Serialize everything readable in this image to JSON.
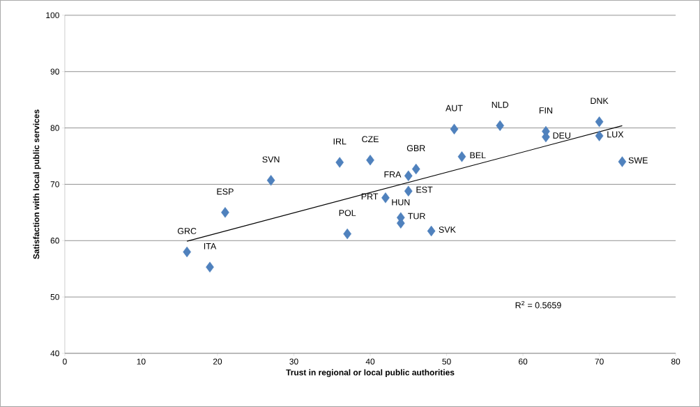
{
  "chart_data": {
    "type": "scatter",
    "xlabel": "Trust in regional or local public authorities",
    "ylabel": "Satisfaction with local public services",
    "series": [
      {
        "type": "scatter",
        "color": "#4f81bd",
        "marker": "diamond",
        "x": [
          16,
          19,
          21,
          27,
          36,
          40,
          46,
          45,
          45,
          42,
          44,
          44,
          37,
          48,
          51,
          52,
          57,
          63,
          63,
          70,
          70,
          73
        ],
        "values": [
          58.0,
          55.3,
          65.0,
          70.7,
          73.9,
          74.3,
          72.7,
          71.5,
          68.8,
          67.6,
          64.1,
          63.1,
          61.2,
          61.7,
          79.8,
          74.9,
          80.4,
          79.4,
          78.4,
          81.1,
          78.6,
          74.0
        ]
      },
      {
        "type": "line",
        "color": "#000000",
        "x": [
          16,
          73
        ],
        "values": [
          59.9,
          80.4
        ]
      }
    ],
    "xlim": [
      0,
      80
    ],
    "ylim": [
      40,
      100
    ],
    "xticks": [
      0,
      10,
      20,
      30,
      40,
      50,
      60,
      70,
      80
    ],
    "yticks": [
      40,
      50,
      60,
      70,
      80,
      90,
      100
    ],
    "grid": "y",
    "annotations": [
      {
        "text": "GRC",
        "x": 16,
        "y": 58.0
      },
      {
        "text": "ITA",
        "x": 19,
        "y": 55.3
      },
      {
        "text": "ESP",
        "x": 21,
        "y": 65.0
      },
      {
        "text": "SVN",
        "x": 27,
        "y": 70.7
      },
      {
        "text": "IRL",
        "x": 36,
        "y": 73.9
      },
      {
        "text": "CZE",
        "x": 40,
        "y": 74.3
      },
      {
        "text": "GBR",
        "x": 46,
        "y": 72.7
      },
      {
        "text": "FRA",
        "x": 45,
        "y": 71.5
      },
      {
        "text": "EST",
        "x": 45,
        "y": 68.8
      },
      {
        "text": "PRT",
        "x": 42,
        "y": 67.6
      },
      {
        "text": "TUR",
        "x": 44,
        "y": 64.1
      },
      {
        "text": "HUN",
        "x": 44,
        "y": 63.1
      },
      {
        "text": "POL",
        "x": 37,
        "y": 61.2
      },
      {
        "text": "SVK",
        "x": 48,
        "y": 61.7
      },
      {
        "text": "AUT",
        "x": 51,
        "y": 79.8
      },
      {
        "text": "BEL",
        "x": 52,
        "y": 74.9
      },
      {
        "text": "NLD",
        "x": 57,
        "y": 80.4
      },
      {
        "text": "FIN",
        "x": 63,
        "y": 79.4
      },
      {
        "text": "DEU",
        "x": 63,
        "y": 78.4
      },
      {
        "text": "DNK",
        "x": 70,
        "y": 81.1
      },
      {
        "text": "LUX",
        "x": 70,
        "y": 78.6
      },
      {
        "text": "SWE",
        "x": 73,
        "y": 74.0
      },
      "R$^{2}$ = 0.5659"
    ]
  }
}
